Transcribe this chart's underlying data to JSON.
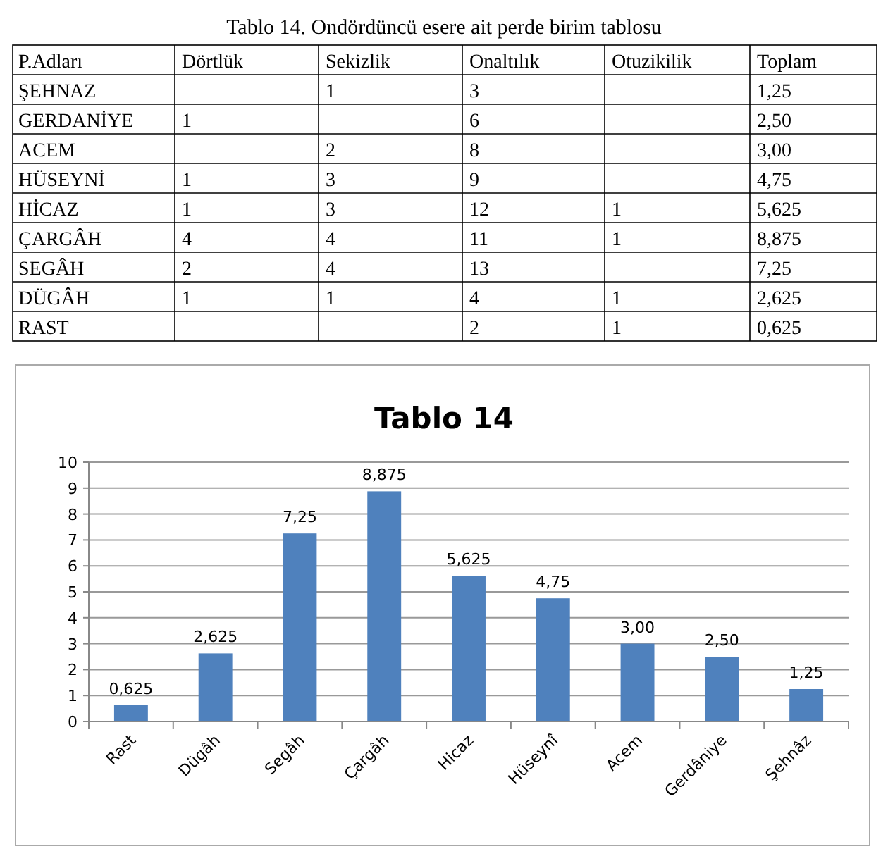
{
  "chart_data": [
    {
      "type": "other",
      "title": "Tablo 14. Ondördüncü esere ait perde birim tablosu",
      "categories": [
        "P.Adları",
        "Dörtlük",
        "Sekizlik",
        "Onaltılık",
        "Otuzikilik",
        "Toplam"
      ],
      "y_categories": [
        "ŞEHNAZ",
        "GERDANİYE",
        "ACEM",
        "HÜSEYNİ",
        "HİCAZ",
        "ÇARGÂH",
        "SEGÂH",
        "DÜGÂH",
        "RAST"
      ],
      "cell_labels": [
        [
          null,
          "1",
          "3",
          null,
          "1,25"
        ],
        [
          "1",
          null,
          "6",
          null,
          "2,50"
        ],
        [
          null,
          "2",
          "8",
          null,
          "3,00"
        ],
        [
          "1",
          "3",
          "9",
          null,
          "4,75"
        ],
        [
          "1",
          "3",
          "12",
          "1",
          "5,625"
        ],
        [
          "4",
          "4",
          "11",
          "1",
          "8,875"
        ],
        [
          "2",
          "4",
          "13",
          null,
          "7,25"
        ],
        [
          "1",
          "1",
          "4",
          "1",
          "2,625"
        ],
        [
          null,
          null,
          "2",
          "1",
          "0,625"
        ]
      ]
    },
    {
      "type": "bar",
      "title": "Tablo 14",
      "categories": [
        "Rast",
        "Dügâh",
        "Segâh",
        "Çargâh",
        "Hicaz",
        "Hüseynî",
        "Acem",
        "Gerdâniye",
        "Şehnâz"
      ],
      "values": [
        0.625,
        2.625,
        7.25,
        8.875,
        5.625,
        4.75,
        3.0,
        2.5,
        1.25
      ],
      "value_labels": [
        "0,625",
        "2,625",
        "7,25",
        "8,875",
        "5,625",
        "4,75",
        "3,00",
        "2,50",
        "1,25"
      ],
      "color": "#4f81bd",
      "ylim": [
        0,
        10
      ],
      "yticks": [
        0,
        1,
        2,
        3,
        4,
        5,
        6,
        7,
        8,
        9,
        10
      ],
      "grid": "y"
    }
  ]
}
